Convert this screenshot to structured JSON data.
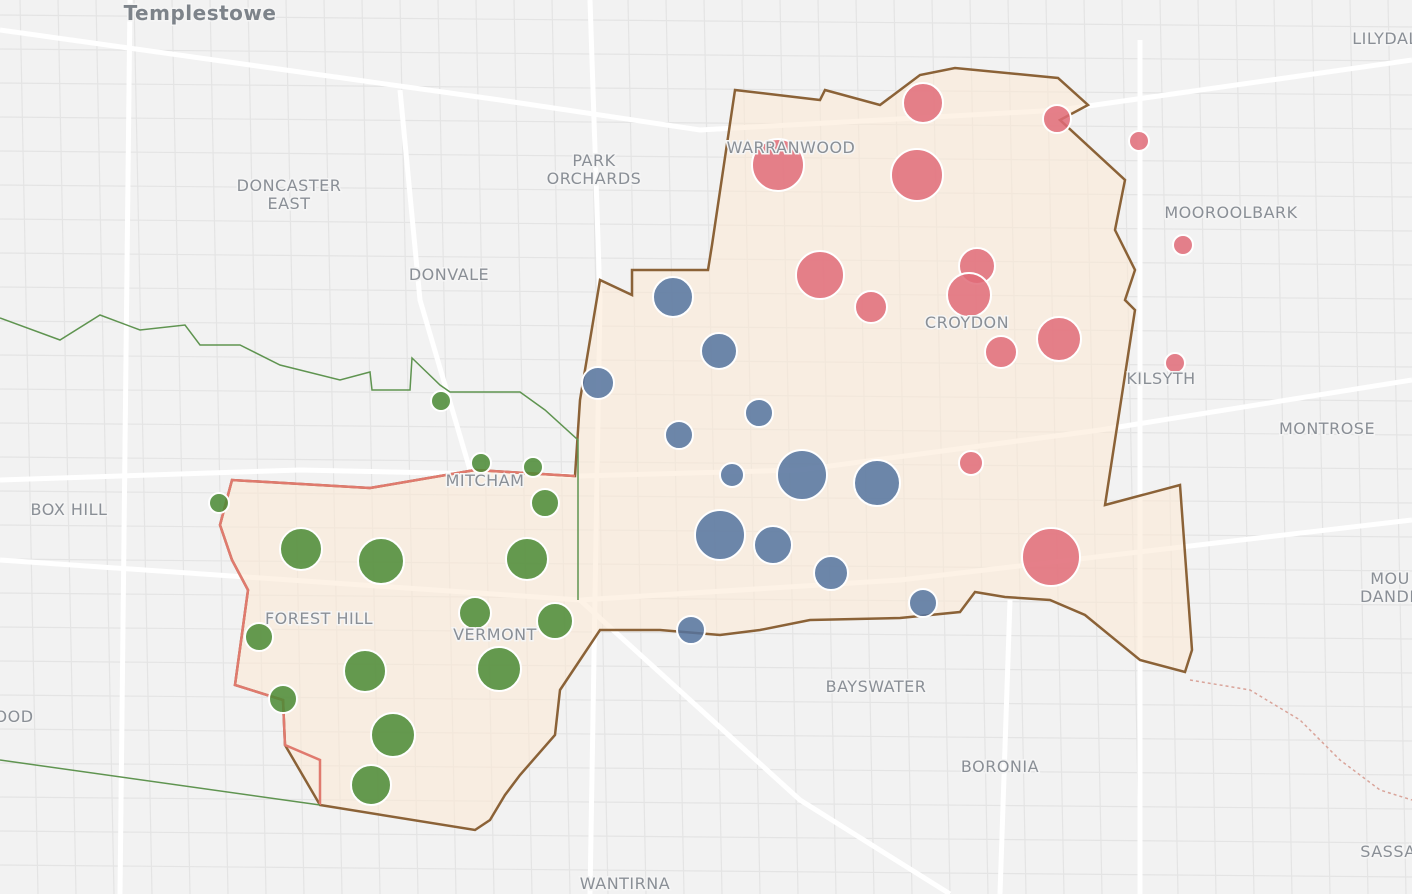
{
  "labels": [
    {
      "lines": [
        "Templestowe"
      ]
    },
    {
      "lines": [
        "LILYDAL"
      ]
    },
    {
      "lines": [
        "DONCASTER",
        "EAST"
      ]
    },
    {
      "lines": [
        "PARK",
        "ORCHARDS"
      ]
    },
    {
      "lines": [
        "WARRANWOOD"
      ]
    },
    {
      "lines": [
        "MOOROOLBARK"
      ]
    },
    {
      "lines": [
        "DONVALE"
      ]
    },
    {
      "lines": [
        "CROYDON"
      ]
    },
    {
      "lines": [
        "KILSYTH"
      ]
    },
    {
      "lines": [
        "MONTROSE"
      ]
    },
    {
      "lines": [
        "BOX HILL"
      ]
    },
    {
      "lines": [
        "MITCHAM"
      ]
    },
    {
      "lines": [
        "FOREST HILL"
      ]
    },
    {
      "lines": [
        "VERMONT"
      ]
    },
    {
      "lines": [
        "MOU",
        "DANDE"
      ]
    },
    {
      "lines": [
        "BAYSWATER"
      ]
    },
    {
      "lines": [
        "BORONIA"
      ]
    },
    {
      "lines": [
        "WANTIRNA"
      ]
    },
    {
      "lines": [
        "SASSA"
      ]
    },
    {
      "lines": [
        "OOD"
      ]
    }
  ]
}
